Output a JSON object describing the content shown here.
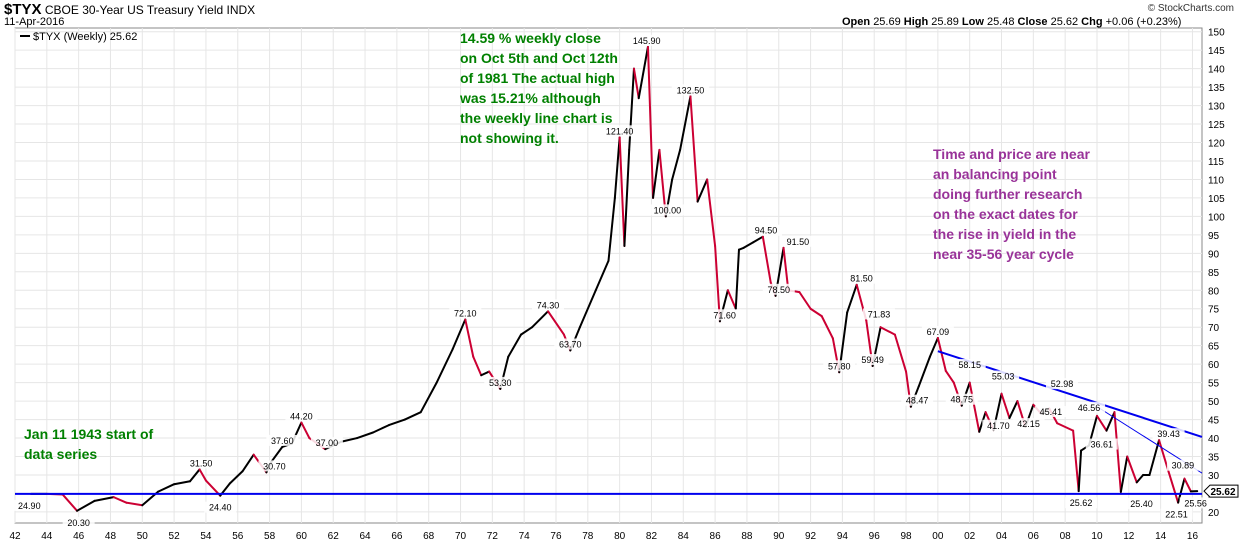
{
  "header": {
    "symbol": "$TYX",
    "name": "CBOE 30-Year US Treasury Yield INDX",
    "date": "11-Apr-2016",
    "ohlc": {
      "open_label": "Open",
      "open": "25.69",
      "high_label": "High",
      "high": "25.89",
      "low_label": "Low",
      "low": "25.48",
      "close_label": "Close",
      "close": "25.62",
      "chg_label": "Chg",
      "chg": "+0.06 (+0.23%)"
    },
    "brand": "© StockCharts.com"
  },
  "legend": {
    "text": "$TYX (Weekly) 25.62"
  },
  "annotations": {
    "green_note": "14.59 % weekly close on Oct 5th and Oct 12th of 1981  The actual high was 15.21% although the weekly line chart is not showing it.",
    "purple_note": "Time and price are near an balancing point doing further research on the exact dates for the rise in yield in the near 35-56 year cycle",
    "start_note": "Jan 11 1943 start of data series"
  },
  "colors": {
    "line_up": "#000000",
    "line_down": "#cc0033",
    "trend": "#0000ee",
    "grid": "#e6e6e6",
    "note_green": "#008000",
    "note_purple": "#993399"
  },
  "chart_data": {
    "type": "line",
    "title": "$TYX CBOE 30-Year US Treasury Yield INDX (Weekly)",
    "xlabel": "",
    "ylabel": "",
    "xlim": [
      1942,
      2016.6
    ],
    "ylim": [
      17,
      151
    ],
    "x_ticks": [
      "42",
      "44",
      "46",
      "48",
      "50",
      "52",
      "54",
      "56",
      "58",
      "60",
      "62",
      "64",
      "66",
      "68",
      "70",
      "72",
      "74",
      "76",
      "78",
      "80",
      "82",
      "84",
      "86",
      "88",
      "90",
      "92",
      "94",
      "96",
      "98",
      "00",
      "02",
      "04",
      "06",
      "08",
      "10",
      "12",
      "14",
      "16"
    ],
    "y_ticks": [
      20,
      25,
      30,
      35,
      40,
      45,
      50,
      55,
      60,
      65,
      70,
      75,
      80,
      85,
      90,
      95,
      100,
      105,
      110,
      115,
      120,
      125,
      130,
      135,
      140,
      145,
      150
    ],
    "last_value": "25.62",
    "series": [
      {
        "name": "$TYX (Weekly)",
        "x": [
          1943.0,
          1944.0,
          1945.0,
          1945.9,
          1947.0,
          1948.2,
          1949.0,
          1950.0,
          1951.0,
          1952.0,
          1953.0,
          1953.6,
          1954.0,
          1954.9,
          1955.5,
          1956.3,
          1957.0,
          1957.8,
          1958.1,
          1958.8,
          1959.4,
          1960.0,
          1960.5,
          1961.5,
          1962.5,
          1963.5,
          1964.5,
          1965.5,
          1966.5,
          1967.5,
          1968.5,
          1969.5,
          1970.3,
          1970.8,
          1971.3,
          1971.8,
          1972.5,
          1973.0,
          1973.8,
          1974.5,
          1975.5,
          1976.5,
          1976.9,
          1977.5,
          1978.5,
          1979.3,
          1979.7,
          1980.0,
          1980.3,
          1980.6,
          1980.9,
          1981.2,
          1981.78,
          1982.1,
          1982.5,
          1982.9,
          1983.3,
          1983.8,
          1984.45,
          1984.9,
          1985.5,
          1986.0,
          1986.3,
          1986.8,
          1987.3,
          1987.5,
          1987.8,
          1988.4,
          1989.0,
          1989.5,
          1989.8,
          1990.3,
          1990.6,
          1991.3,
          1992.0,
          1992.7,
          1993.4,
          1993.8,
          1994.3,
          1994.9,
          1995.5,
          1995.9,
          1996.4,
          1997.3,
          1998.0,
          1998.3,
          1998.8,
          1999.5,
          2000.0,
          2000.5,
          2001.0,
          2001.5,
          2002.0,
          2002.6,
          2003.0,
          2003.5,
          2004.0,
          2004.5,
          2005.0,
          2005.5,
          2006.0,
          2006.5,
          2007.0,
          2007.5,
          2008.5,
          2008.85,
          2009.0,
          2009.5,
          2010.0,
          2010.6,
          2011.1,
          2011.5,
          2011.9,
          2012.5,
          2012.9,
          2013.3,
          2013.9,
          2014.5,
          2015.1,
          2015.5,
          2015.9,
          2016.3
        ],
        "values": [
          24.9,
          24.9,
          24.7,
          20.3,
          23.0,
          24.0,
          22.5,
          21.8,
          25.5,
          27.5,
          28.3,
          31.5,
          28.5,
          24.4,
          27.7,
          31.0,
          35.5,
          30.7,
          33.5,
          37.6,
          38.5,
          44.2,
          40.0,
          37.0,
          39.0,
          40.0,
          41.5,
          43.5,
          45.0,
          47.0,
          55.0,
          64.0,
          72.1,
          62.0,
          57.0,
          58.0,
          53.3,
          62.0,
          68.0,
          70.0,
          74.3,
          68.0,
          63.7,
          70.0,
          80.0,
          88.0,
          105.0,
          121.4,
          92.0,
          118.0,
          140.0,
          132.0,
          145.9,
          105.0,
          118.0,
          100.0,
          110.0,
          118.0,
          132.5,
          104.0,
          110.0,
          92.0,
          71.6,
          80.0,
          75.0,
          91.0,
          91.5,
          93.0,
          94.5,
          82.0,
          78.5,
          91.5,
          80.0,
          79.5,
          75.0,
          73.0,
          67.0,
          57.8,
          74.0,
          81.5,
          71.83,
          59.49,
          70.0,
          68.0,
          58.0,
          48.47,
          54.0,
          62.0,
          67.09,
          58.15,
          55.0,
          48.75,
          55.0,
          41.7,
          47.0,
          42.15,
          52.0,
          45.41,
          50.0,
          43.0,
          49.0,
          46.56,
          48.0,
          44.0,
          42.0,
          25.62,
          36.61,
          38.0,
          46.0,
          42.0,
          47.0,
          25.4,
          35.0,
          28.0,
          30.0,
          30.0,
          39.43,
          30.89,
          22.51,
          29.0,
          25.56,
          25.62
        ]
      }
    ],
    "point_labels": [
      {
        "x": 1942.9,
        "value": 24.9,
        "text": "24.90"
      },
      {
        "x": 1946.0,
        "value": 20.3,
        "text": "20.30"
      },
      {
        "x": 1953.7,
        "value": 31.5,
        "text": "31.50"
      },
      {
        "x": 1954.9,
        "value": 24.4,
        "text": "24.40"
      },
      {
        "x": 1958.8,
        "value": 37.6,
        "text": "37.60"
      },
      {
        "x": 1958.3,
        "value": 30.7,
        "text": "30.70"
      },
      {
        "x": 1960.0,
        "value": 44.2,
        "text": "44.20"
      },
      {
        "x": 1961.6,
        "value": 37.0,
        "text": "37.00"
      },
      {
        "x": 1970.3,
        "value": 72.1,
        "text": "72.10"
      },
      {
        "x": 1972.5,
        "value": 53.3,
        "text": "53.30"
      },
      {
        "x": 1975.5,
        "value": 74.3,
        "text": "74.30"
      },
      {
        "x": 1976.9,
        "value": 63.7,
        "text": "63.70"
      },
      {
        "x": 1980.0,
        "value": 121.4,
        "text": "121.40"
      },
      {
        "x": 1981.7,
        "value": 145.9,
        "text": "145.90"
      },
      {
        "x": 1984.45,
        "value": 132.5,
        "text": "132.50"
      },
      {
        "x": 1983.0,
        "value": 100.0,
        "text": "100.00"
      },
      {
        "x": 1986.6,
        "value": 71.6,
        "text": "71.60"
      },
      {
        "x": 1989.2,
        "value": 94.5,
        "text": "94.50"
      },
      {
        "x": 1991.2,
        "value": 91.5,
        "text": "91.50"
      },
      {
        "x": 1990.0,
        "value": 78.5,
        "text": "78.50"
      },
      {
        "x": 1993.8,
        "value": 57.8,
        "text": "57.80"
      },
      {
        "x": 1995.2,
        "value": 81.5,
        "text": "81.50"
      },
      {
        "x": 1996.3,
        "value": 71.83,
        "text": "71.83"
      },
      {
        "x": 1995.9,
        "value": 59.49,
        "text": "59.49"
      },
      {
        "x": 2000.0,
        "value": 67.09,
        "text": "67.09"
      },
      {
        "x": 1998.7,
        "value": 48.47,
        "text": "48.47"
      },
      {
        "x": 2002.0,
        "value": 58.15,
        "text": "58.15"
      },
      {
        "x": 2001.5,
        "value": 48.75,
        "text": "48.75"
      },
      {
        "x": 2004.1,
        "value": 55.03,
        "text": "55.03"
      },
      {
        "x": 2003.8,
        "value": 41.7,
        "text": "41.70"
      },
      {
        "x": 2005.7,
        "value": 42.15,
        "text": "42.15"
      },
      {
        "x": 2007.8,
        "value": 52.98,
        "text": "52.98"
      },
      {
        "x": 2007.1,
        "value": 45.41,
        "text": "45.41"
      },
      {
        "x": 2009.5,
        "value": 46.56,
        "text": "46.56"
      },
      {
        "x": 2009.0,
        "value": 25.62,
        "text": "25.62"
      },
      {
        "x": 2010.3,
        "value": 36.61,
        "text": "36.61"
      },
      {
        "x": 2012.8,
        "value": 25.4,
        "text": "25.40"
      },
      {
        "x": 2014.5,
        "value": 39.43,
        "text": "39.43"
      },
      {
        "x": 2015.4,
        "value": 30.89,
        "text": "30.89"
      },
      {
        "x": 2015.0,
        "value": 22.51,
        "text": "22.51"
      },
      {
        "x": 2016.2,
        "value": 25.56,
        "text": "25.56"
      }
    ],
    "trend_lines": [
      {
        "name": "support",
        "x": [
          1942,
          2016.6
        ],
        "values": [
          24.9,
          24.9
        ]
      },
      {
        "name": "upper-resistance",
        "x": [
          2000.0,
          2016.6
        ],
        "values": [
          63.5,
          40.3
        ]
      },
      {
        "name": "lower-resistance",
        "x": [
          2010.0,
          2016.6
        ],
        "values": [
          48.5,
          30.5
        ]
      }
    ]
  }
}
